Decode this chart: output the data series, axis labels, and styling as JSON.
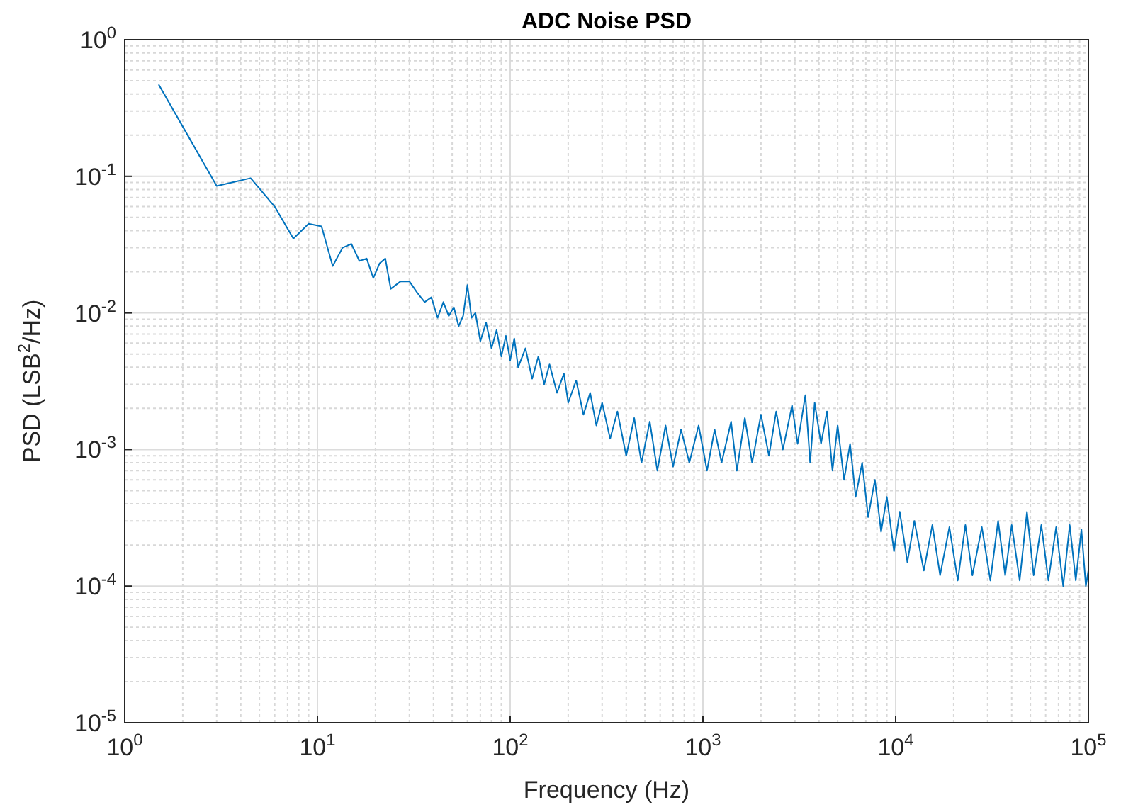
{
  "chart_data": {
    "type": "line",
    "title": "ADC Noise PSD",
    "xlabel": "Frequency (Hz)",
    "ylabel": "PSD (LSB$^{2}$/Hz)",
    "log": "xy",
    "grid": true,
    "line_style": "solid",
    "marker": "none",
    "xlim": [
      1,
      100000
    ],
    "ylim": [
      1e-05,
      1
    ],
    "xticks": [
      {
        "value": 1,
        "label": "10$^{0}$"
      },
      {
        "value": 10,
        "label": "10$^{1}$"
      },
      {
        "value": 100,
        "label": "10$^{2}$"
      },
      {
        "value": 1000,
        "label": "10$^{3}$"
      },
      {
        "value": 10000,
        "label": "10$^{4}$"
      },
      {
        "value": 100000,
        "label": "10$^{5}$"
      }
    ],
    "yticks": [
      {
        "value": 1e-05,
        "label": "10$^{-5}$"
      },
      {
        "value": 0.0001,
        "label": "10$^{-4}$"
      },
      {
        "value": 0.001,
        "label": "10$^{-3}$"
      },
      {
        "value": 0.01,
        "label": "10$^{-2}$"
      },
      {
        "value": 0.1,
        "label": "10$^{-1}$"
      },
      {
        "value": 1,
        "label": "10$^{0}$"
      }
    ],
    "series": [
      {
        "color": "#0072bd",
        "x": [
          1.5,
          3,
          4.5,
          6,
          7.5,
          9,
          10.5,
          12,
          13.5,
          15,
          16.5,
          18,
          19.5,
          21,
          22.5,
          24,
          27,
          30,
          33,
          36,
          39,
          42,
          45,
          48,
          51,
          54,
          57,
          60,
          63,
          66,
          70,
          75,
          80,
          85,
          90,
          95,
          100,
          105,
          110,
          120,
          130,
          140,
          150,
          160,
          175,
          190,
          200,
          220,
          240,
          260,
          280,
          300,
          330,
          360,
          400,
          440,
          480,
          530,
          580,
          640,
          700,
          770,
          850,
          950,
          1050,
          1150,
          1250,
          1400,
          1500,
          1650,
          1800,
          2000,
          2200,
          2400,
          2600,
          2900,
          3100,
          3400,
          3600,
          3800,
          4100,
          4400,
          4700,
          5000,
          5400,
          5800,
          6200,
          6700,
          7200,
          7800,
          8400,
          9000,
          9800,
          10500,
          11500,
          12500,
          14000,
          15500,
          17000,
          19000,
          21000,
          23000,
          25000,
          28000,
          31000,
          34000,
          37000,
          40000,
          44000,
          48000,
          52000,
          57000,
          62000,
          68000,
          74000,
          80000,
          86000,
          92000,
          97000,
          100000
        ],
        "values": [
          0.47,
          0.085,
          0.097,
          0.06,
          0.035,
          0.045,
          0.043,
          0.022,
          0.03,
          0.032,
          0.024,
          0.025,
          0.018,
          0.023,
          0.025,
          0.015,
          0.017,
          0.017,
          0.014,
          0.012,
          0.013,
          0.0092,
          0.012,
          0.0095,
          0.011,
          0.008,
          0.0095,
          0.016,
          0.0092,
          0.01,
          0.0062,
          0.0085,
          0.0055,
          0.0075,
          0.0048,
          0.0068,
          0.0045,
          0.0065,
          0.004,
          0.0055,
          0.0033,
          0.0048,
          0.003,
          0.0042,
          0.0026,
          0.0036,
          0.0022,
          0.0032,
          0.0018,
          0.0026,
          0.0015,
          0.0022,
          0.0012,
          0.0019,
          0.0009,
          0.0017,
          0.0008,
          0.0016,
          0.0007,
          0.0015,
          0.00075,
          0.0014,
          0.0008,
          0.0015,
          0.0007,
          0.0014,
          0.0008,
          0.0016,
          0.0007,
          0.0017,
          0.0008,
          0.0018,
          0.0009,
          0.0019,
          0.001,
          0.0021,
          0.0011,
          0.0025,
          0.0008,
          0.0022,
          0.0011,
          0.0019,
          0.0007,
          0.0015,
          0.0006,
          0.0011,
          0.00045,
          0.0008,
          0.00032,
          0.0006,
          0.00025,
          0.00045,
          0.00018,
          0.00035,
          0.00015,
          0.0003,
          0.00013,
          0.00028,
          0.00012,
          0.00027,
          0.00011,
          0.00028,
          0.00012,
          0.00027,
          0.00011,
          0.0003,
          0.00012,
          0.00028,
          0.00011,
          0.00035,
          0.00012,
          0.00028,
          0.00011,
          0.00027,
          0.0001,
          0.00028,
          0.00011,
          0.00026,
          0.0001,
          0.00013
        ]
      }
    ]
  }
}
